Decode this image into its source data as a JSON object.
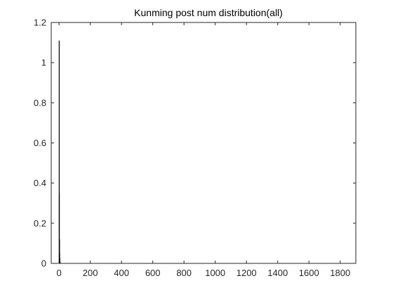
{
  "chart_data": {
    "type": "bar",
    "title": "Kunming post num distribution(all)",
    "xlabel": "",
    "ylabel": "",
    "xlim": [
      -50,
      1900
    ],
    "ylim": [
      0,
      1.2
    ],
    "x_ticks": [
      0,
      200,
      400,
      600,
      800,
      1000,
      1200,
      1400,
      1600,
      1800
    ],
    "y_ticks": [
      0,
      0.2,
      0.4,
      0.6,
      0.8,
      1,
      1.2
    ],
    "grid": false,
    "legend": "none",
    "bar_color": "#000000",
    "bars": [
      {
        "x": 1,
        "value": 1.11
      },
      {
        "x": 2,
        "value": 0.35
      },
      {
        "x": 3,
        "value": 0.12
      },
      {
        "x": 4,
        "value": 0.05
      },
      {
        "x": 5,
        "value": 0.025
      },
      {
        "x": 6,
        "value": 0.012
      },
      {
        "x": 7,
        "value": 0.006
      },
      {
        "x": 8,
        "value": 0.003
      }
    ]
  }
}
